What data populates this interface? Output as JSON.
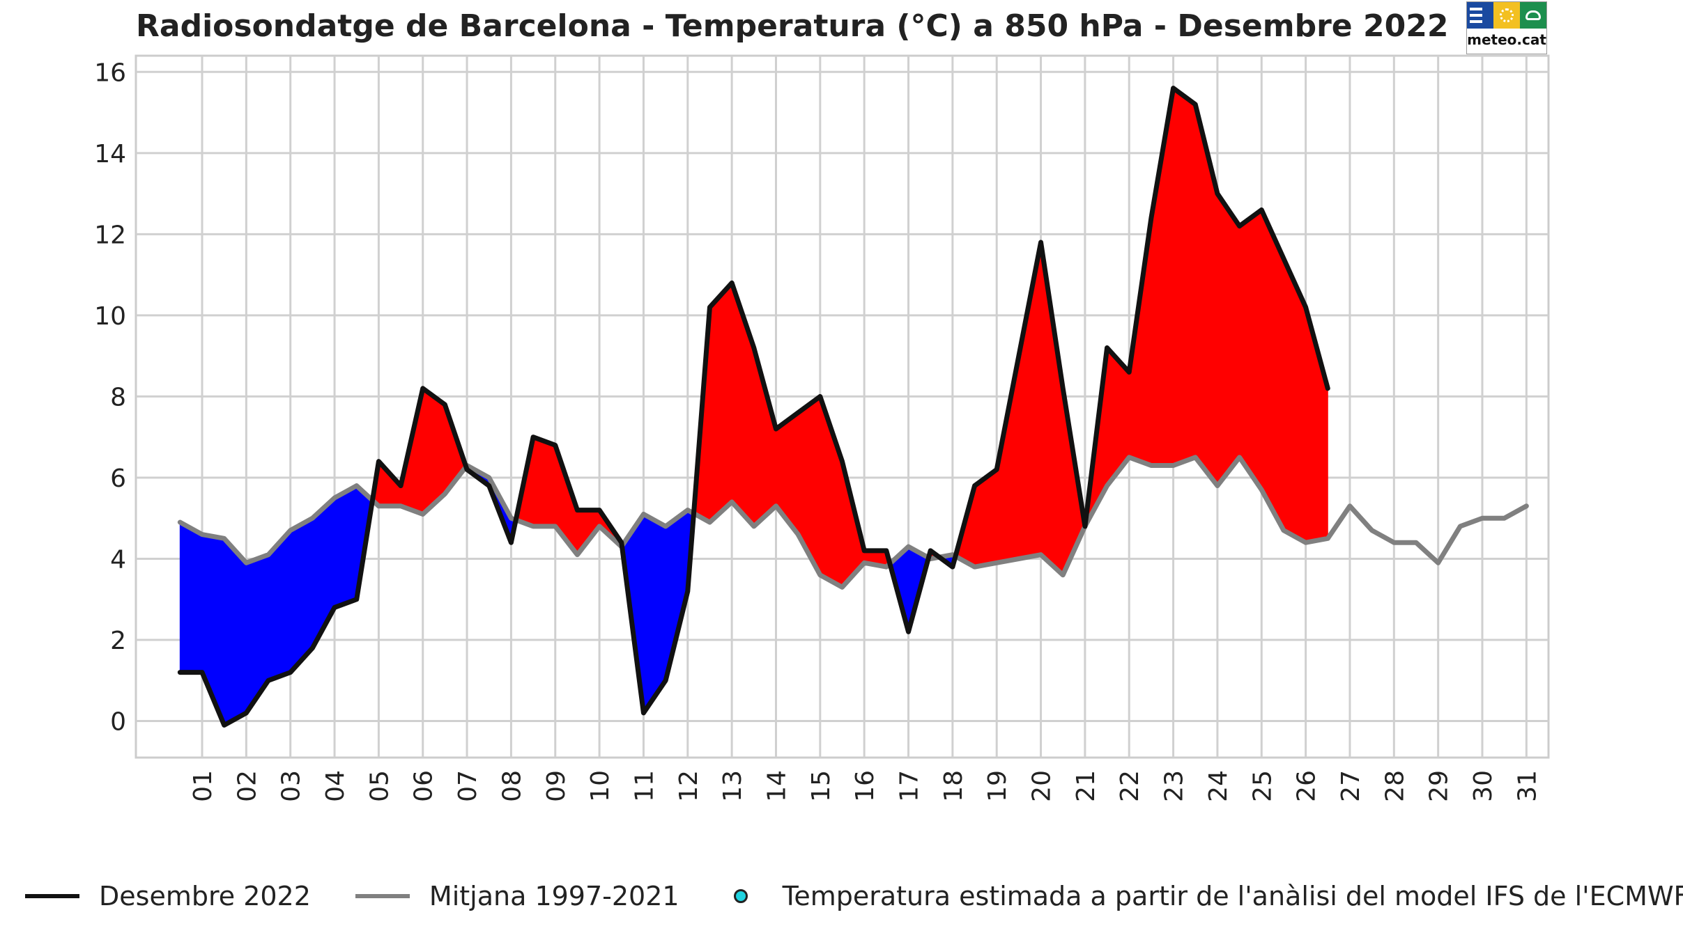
{
  "chart_data": {
    "type": "line",
    "title": "Radiosondatge de Barcelona - Temperatura (°C) a 850 hPa - Desembre 2022",
    "xlabel": "",
    "ylabel": "",
    "xlim": [
      -0.5,
      31.5
    ],
    "ylim": [
      -0.9,
      16.4
    ],
    "yticks": [
      0,
      2,
      4,
      6,
      8,
      10,
      12,
      14,
      16
    ],
    "xtick_values": [
      1,
      2,
      3,
      4,
      5,
      6,
      7,
      8,
      9,
      10,
      11,
      12,
      13,
      14,
      15,
      16,
      17,
      18,
      19,
      20,
      21,
      22,
      23,
      24,
      25,
      26,
      27,
      28,
      29,
      30,
      31
    ],
    "xtick_labels": [
      "01",
      "02",
      "03",
      "04",
      "05",
      "06",
      "07",
      "08",
      "09",
      "10",
      "11",
      "12",
      "13",
      "14",
      "15",
      "16",
      "17",
      "18",
      "19",
      "20",
      "21",
      "22",
      "23",
      "24",
      "25",
      "26",
      "27",
      "28",
      "29",
      "30",
      "31"
    ],
    "grid": true,
    "series": [
      {
        "name": "Desembre 2022",
        "color": "#111111",
        "x": [
          0.5,
          1,
          1.5,
          2,
          2.5,
          3,
          3.5,
          4,
          4.5,
          5,
          5.5,
          6,
          6.5,
          7,
          7.5,
          8,
          8.5,
          9,
          9.5,
          10,
          10.5,
          11,
          11.5,
          12,
          12.5,
          13,
          13.5,
          14,
          14.5,
          15,
          15.5,
          16,
          16.5,
          17,
          17.5,
          18,
          18.5,
          19,
          19.5,
          20,
          20.5,
          21,
          21.5,
          22,
          22.5,
          23,
          23.5,
          24,
          24.5,
          25,
          25.5,
          26,
          26.5
        ],
        "values": [
          1.2,
          1.2,
          -0.1,
          0.2,
          1.0,
          1.2,
          1.8,
          2.8,
          3.0,
          6.4,
          5.8,
          8.2,
          7.8,
          6.2,
          5.8,
          4.4,
          7.0,
          6.8,
          5.2,
          5.2,
          4.4,
          0.2,
          1.0,
          3.2,
          10.2,
          10.8,
          9.2,
          7.2,
          7.6,
          8.0,
          6.4,
          4.2,
          4.2,
          2.2,
          4.2,
          3.8,
          5.8,
          6.2,
          9.0,
          11.8,
          8.2,
          4.8,
          9.2,
          8.6,
          12.4,
          15.6,
          15.2,
          13.0,
          12.2,
          12.6,
          11.4,
          10.2,
          8.2
        ]
      },
      {
        "name": "Mitjana 1997-2021",
        "color": "#808080",
        "x": [
          0.5,
          1,
          1.5,
          2,
          2.5,
          3,
          3.5,
          4,
          4.5,
          5,
          5.5,
          6,
          6.5,
          7,
          7.5,
          8,
          8.5,
          9,
          9.5,
          10,
          10.5,
          11,
          11.5,
          12,
          12.5,
          13,
          13.5,
          14,
          14.5,
          15,
          15.5,
          16,
          16.5,
          17,
          17.5,
          18,
          18.5,
          19,
          19.5,
          20,
          20.5,
          21,
          21.5,
          22,
          22.5,
          23,
          23.5,
          24,
          24.5,
          25,
          25.5,
          26,
          26.5,
          27,
          27.5,
          28,
          28.5,
          29,
          29.5,
          30,
          30.5,
          31
        ],
        "values": [
          4.9,
          4.6,
          4.5,
          3.9,
          4.1,
          4.7,
          5.0,
          5.5,
          5.8,
          5.3,
          5.3,
          5.1,
          5.6,
          6.3,
          6.0,
          5.0,
          4.8,
          4.8,
          4.1,
          4.8,
          4.3,
          5.1,
          4.8,
          5.2,
          4.9,
          5.4,
          4.8,
          5.3,
          4.6,
          3.6,
          3.3,
          3.9,
          3.8,
          4.3,
          4.0,
          4.1,
          3.8,
          3.9,
          4.0,
          4.1,
          3.6,
          4.8,
          5.8,
          6.5,
          6.3,
          6.3,
          6.5,
          5.8,
          6.5,
          5.7,
          4.7,
          4.4,
          4.5,
          5.3,
          4.7,
          4.4,
          4.4,
          3.9,
          4.8,
          5.0,
          5.0,
          5.3
        ]
      }
    ],
    "fill_above_color": "#ff0000",
    "fill_below_color": "#0000ff",
    "legend_position": "bottom",
    "legend": [
      {
        "label": "Desembre 2022",
        "color": "#111111"
      },
      {
        "label": "Mitjana 1997-2021",
        "color": "#808080"
      },
      {
        "label": "Temperatura estimada a partir de l'anàlisi del model IFS de l'ECMWF",
        "color": "#1fd3e0"
      }
    ]
  },
  "logo": {
    "text": "meteo.cat"
  }
}
